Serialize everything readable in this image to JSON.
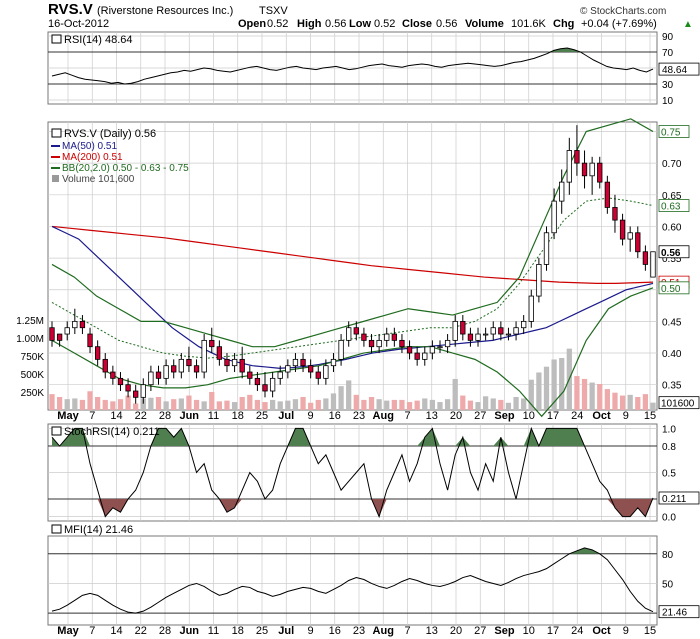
{
  "header": {
    "symbol": "RVS.V",
    "company": "(Riverstone Resources Inc.)",
    "exchange": "TSXV",
    "date": "16-Oct-2012",
    "ohlc": [
      {
        "label": "Open",
        "value": "0.52"
      },
      {
        "label": "High",
        "value": "0.56"
      },
      {
        "label": "Low",
        "value": "0.52"
      },
      {
        "label": "Close",
        "value": "0.56"
      },
      {
        "label": "Volume",
        "value": "101.6K"
      },
      {
        "label": "Chg",
        "value": "+0.04 (+7.69%)"
      }
    ],
    "change_direction_glyph": "▲",
    "watermark": "© StockCharts.com"
  },
  "colors": {
    "up": "#ffffff",
    "down": "#cc0033",
    "ma50": "#1a1a8c",
    "ma200": "#cc0000",
    "bb": "#1f6b1f",
    "overbought_fill": "#4f7f4f",
    "oversold_fill": "#8f5050",
    "vol_up": "#bdbdbd",
    "vol_down": "#eeaaaa",
    "grid": "#cccccc"
  },
  "chart_data": {
    "type": "candlestick",
    "x_tick_labels": [
      "May",
      "7",
      "14",
      "22",
      "28",
      "Jun",
      "11",
      "18",
      "25",
      "Jul",
      "9",
      "16",
      "23",
      "Aug",
      "7",
      "13",
      "20",
      "27",
      "Sep",
      "10",
      "17",
      "24",
      "Oct",
      "9",
      "15"
    ],
    "x_tick_bold": [
      "May",
      "Jun",
      "Jul",
      "Aug",
      "Sep",
      "Oct"
    ],
    "rsi": {
      "label": "RSI(14) 48.64",
      "last": "48.64",
      "right_ticks": [
        "90",
        "70",
        "50",
        "30",
        "10"
      ],
      "right_tick_values": [
        90,
        70,
        50,
        30,
        10
      ],
      "levels": [
        70,
        30
      ],
      "ylim": [
        5,
        95
      ],
      "values": [
        40,
        42,
        44,
        41,
        38,
        36,
        35,
        34,
        33,
        31,
        32,
        30,
        31,
        33,
        36,
        38,
        40,
        42,
        44,
        45,
        47,
        46,
        48,
        50,
        49,
        47,
        46,
        45,
        47,
        49,
        51,
        52,
        50,
        48,
        47,
        49,
        51,
        52,
        50,
        49,
        48,
        50,
        51,
        52,
        50,
        48,
        49,
        51,
        53,
        54,
        55,
        53,
        52,
        51,
        53,
        54,
        55,
        54,
        52,
        51,
        53,
        54,
        55,
        56,
        55,
        54,
        53,
        52,
        53,
        55,
        57,
        58,
        60,
        62,
        65,
        68,
        72,
        74,
        75,
        73,
        70,
        65,
        60,
        56,
        52,
        50,
        49,
        48,
        50,
        47,
        45,
        48.64
      ]
    },
    "price": {
      "legend": [
        {
          "name": "RVS.V (Daily) 0.56",
          "marker": "candle"
        },
        {
          "name": "MA(50) 0.51",
          "marker": "ma50"
        },
        {
          "name": "MA(200) 0.51",
          "marker": "ma200"
        },
        {
          "name": "BB(20,2.0) 0.50 - 0.63 - 0.75",
          "marker": "bb"
        },
        {
          "name": "Volume 101,600",
          "marker": "vol"
        }
      ],
      "right_ticks": [
        "0.75",
        "0.70",
        "0.65",
        "0.60",
        "0.55",
        "0.50",
        "0.45",
        "0.40",
        "0.35"
      ],
      "right_tick_values": [
        0.75,
        0.7,
        0.65,
        0.6,
        0.55,
        0.5,
        0.45,
        0.4,
        0.35
      ],
      "ylim": [
        0.31,
        0.765
      ],
      "tags": [
        {
          "text": "0.75",
          "value": 0.75,
          "color": "#1f6b1f",
          "bold": false
        },
        {
          "text": "0.63",
          "value": 0.633,
          "color": "#1f6b1f",
          "bold": false
        },
        {
          "text": "0.56",
          "value": 0.56,
          "color": "#000000",
          "bold": true
        },
        {
          "text": "0.51",
          "value": 0.512,
          "color": "#cc0000",
          "bold": false
        },
        {
          "text": "0.50",
          "value": 0.503,
          "color": "#1f6b1f",
          "bold": false
        }
      ],
      "candles": [
        [
          0.44,
          0.45,
          0.41,
          0.42
        ],
        [
          0.43,
          0.43,
          0.41,
          0.42
        ],
        [
          0.43,
          0.45,
          0.42,
          0.44
        ],
        [
          0.44,
          0.47,
          0.43,
          0.45
        ],
        [
          0.45,
          0.46,
          0.43,
          0.44
        ],
        [
          0.43,
          0.44,
          0.4,
          0.41
        ],
        [
          0.41,
          0.42,
          0.38,
          0.39
        ],
        [
          0.39,
          0.4,
          0.36,
          0.37
        ],
        [
          0.37,
          0.38,
          0.35,
          0.36
        ],
        [
          0.36,
          0.37,
          0.34,
          0.35
        ],
        [
          0.35,
          0.36,
          0.33,
          0.34
        ],
        [
          0.34,
          0.35,
          0.32,
          0.33
        ],
        [
          0.33,
          0.36,
          0.32,
          0.35
        ],
        [
          0.35,
          0.38,
          0.34,
          0.37
        ],
        [
          0.37,
          0.38,
          0.35,
          0.36
        ],
        [
          0.36,
          0.39,
          0.35,
          0.38
        ],
        [
          0.38,
          0.39,
          0.36,
          0.37
        ],
        [
          0.37,
          0.4,
          0.36,
          0.39
        ],
        [
          0.39,
          0.41,
          0.37,
          0.38
        ],
        [
          0.38,
          0.39,
          0.36,
          0.37
        ],
        [
          0.37,
          0.43,
          0.36,
          0.42
        ],
        [
          0.42,
          0.44,
          0.4,
          0.41
        ],
        [
          0.41,
          0.42,
          0.38,
          0.39
        ],
        [
          0.39,
          0.4,
          0.37,
          0.38
        ],
        [
          0.38,
          0.4,
          0.37,
          0.39
        ],
        [
          0.39,
          0.41,
          0.36,
          0.37
        ],
        [
          0.37,
          0.38,
          0.35,
          0.36
        ],
        [
          0.36,
          0.37,
          0.34,
          0.35
        ],
        [
          0.35,
          0.37,
          0.33,
          0.34
        ],
        [
          0.34,
          0.37,
          0.33,
          0.36
        ],
        [
          0.36,
          0.38,
          0.35,
          0.37
        ],
        [
          0.37,
          0.39,
          0.36,
          0.38
        ],
        [
          0.38,
          0.4,
          0.37,
          0.39
        ],
        [
          0.39,
          0.4,
          0.37,
          0.38
        ],
        [
          0.38,
          0.39,
          0.36,
          0.37
        ],
        [
          0.37,
          0.38,
          0.35,
          0.36
        ],
        [
          0.36,
          0.39,
          0.35,
          0.38
        ],
        [
          0.38,
          0.4,
          0.37,
          0.39
        ],
        [
          0.39,
          0.43,
          0.38,
          0.42
        ],
        [
          0.42,
          0.45,
          0.41,
          0.44
        ],
        [
          0.44,
          0.45,
          0.42,
          0.43
        ],
        [
          0.43,
          0.44,
          0.41,
          0.42
        ],
        [
          0.42,
          0.43,
          0.4,
          0.41
        ],
        [
          0.41,
          0.43,
          0.4,
          0.42
        ],
        [
          0.42,
          0.44,
          0.41,
          0.43
        ],
        [
          0.43,
          0.44,
          0.41,
          0.42
        ],
        [
          0.42,
          0.43,
          0.4,
          0.41
        ],
        [
          0.41,
          0.42,
          0.39,
          0.4
        ],
        [
          0.4,
          0.41,
          0.38,
          0.39
        ],
        [
          0.39,
          0.41,
          0.38,
          0.4
        ],
        [
          0.4,
          0.42,
          0.39,
          0.41
        ],
        [
          0.41,
          0.42,
          0.4,
          0.41
        ],
        [
          0.41,
          0.43,
          0.4,
          0.42
        ],
        [
          0.42,
          0.46,
          0.41,
          0.45
        ],
        [
          0.45,
          0.46,
          0.42,
          0.43
        ],
        [
          0.43,
          0.44,
          0.41,
          0.42
        ],
        [
          0.42,
          0.44,
          0.41,
          0.43
        ],
        [
          0.43,
          0.44,
          0.42,
          0.43
        ],
        [
          0.43,
          0.45,
          0.42,
          0.44
        ],
        [
          0.44,
          0.45,
          0.42,
          0.43
        ],
        [
          0.43,
          0.44,
          0.42,
          0.43
        ],
        [
          0.43,
          0.45,
          0.42,
          0.44
        ],
        [
          0.44,
          0.46,
          0.43,
          0.45
        ],
        [
          0.45,
          0.5,
          0.44,
          0.49
        ],
        [
          0.49,
          0.55,
          0.48,
          0.54
        ],
        [
          0.54,
          0.6,
          0.53,
          0.59
        ],
        [
          0.59,
          0.66,
          0.58,
          0.64
        ],
        [
          0.64,
          0.69,
          0.62,
          0.67
        ],
        [
          0.67,
          0.74,
          0.65,
          0.72
        ],
        [
          0.72,
          0.76,
          0.68,
          0.7
        ],
        [
          0.7,
          0.72,
          0.66,
          0.68
        ],
        [
          0.68,
          0.71,
          0.65,
          0.7
        ],
        [
          0.7,
          0.71,
          0.66,
          0.67
        ],
        [
          0.67,
          0.68,
          0.62,
          0.63
        ],
        [
          0.63,
          0.65,
          0.59,
          0.61
        ],
        [
          0.61,
          0.62,
          0.57,
          0.58
        ],
        [
          0.58,
          0.6,
          0.56,
          0.59
        ],
        [
          0.59,
          0.6,
          0.55,
          0.56
        ],
        [
          0.56,
          0.57,
          0.53,
          0.54
        ],
        [
          0.52,
          0.56,
          0.52,
          0.56
        ]
      ],
      "ma50": [
        0.6,
        0.59,
        0.58,
        0.56,
        0.54,
        0.52,
        0.5,
        0.48,
        0.46,
        0.44,
        0.425,
        0.41,
        0.4,
        0.39,
        0.385,
        0.38,
        0.378,
        0.376,
        0.377,
        0.379,
        0.382,
        0.386,
        0.39,
        0.395,
        0.4,
        0.403,
        0.406,
        0.408,
        0.41,
        0.412,
        0.414,
        0.416,
        0.418,
        0.42,
        0.425,
        0.43,
        0.435,
        0.44,
        0.45,
        0.46,
        0.47,
        0.48,
        0.49,
        0.5,
        0.505,
        0.51
      ],
      "ma200": [
        0.6,
        0.597,
        0.594,
        0.591,
        0.588,
        0.585,
        0.582,
        0.578,
        0.574,
        0.57,
        0.566,
        0.562,
        0.558,
        0.554,
        0.55,
        0.546,
        0.542,
        0.538,
        0.535,
        0.532,
        0.529,
        0.526,
        0.523,
        0.52,
        0.518,
        0.516,
        0.514,
        0.512,
        0.511,
        0.51,
        0.51,
        0.511,
        0.512
      ],
      "bb_upper": [
        0.54,
        0.52,
        0.49,
        0.47,
        0.45,
        0.45,
        0.44,
        0.43,
        0.42,
        0.41,
        0.41,
        0.42,
        0.43,
        0.44,
        0.45,
        0.46,
        0.47,
        0.465,
        0.46,
        0.47,
        0.48,
        0.52,
        0.6,
        0.68,
        0.75,
        0.76,
        0.77,
        0.75
      ],
      "bb_mid": [
        0.48,
        0.46,
        0.44,
        0.42,
        0.41,
        0.4,
        0.395,
        0.392,
        0.395,
        0.4,
        0.405,
        0.41,
        0.415,
        0.42,
        0.425,
        0.43,
        0.435,
        0.44,
        0.44,
        0.45,
        0.47,
        0.51,
        0.56,
        0.61,
        0.64,
        0.645,
        0.64,
        0.633
      ],
      "bb_lower": [
        0.42,
        0.4,
        0.38,
        0.36,
        0.35,
        0.345,
        0.345,
        0.35,
        0.36,
        0.365,
        0.37,
        0.375,
        0.38,
        0.39,
        0.4,
        0.405,
        0.41,
        0.41,
        0.4,
        0.39,
        0.37,
        0.34,
        0.3,
        0.34,
        0.42,
        0.47,
        0.49,
        0.503
      ]
    },
    "volume": {
      "labels": [
        "1.25M",
        "1.00M",
        "750K",
        "500K",
        "250K"
      ],
      "label_values": [
        1250000,
        1000000,
        750000,
        500000,
        250000
      ],
      "last": "101600",
      "ymax": 1600000,
      "values": [
        220000,
        180000,
        150000,
        160000,
        140000,
        260000,
        180000,
        140000,
        120000,
        150000,
        200000,
        90000,
        160000,
        170000,
        180000,
        120000,
        150000,
        160000,
        200000,
        140000,
        120000,
        250000,
        120000,
        130000,
        110000,
        180000,
        210000,
        140000,
        110000,
        140000,
        120000,
        130000,
        150000,
        180000,
        100000,
        140000,
        160000,
        230000,
        330000,
        410000,
        210000,
        140000,
        180000,
        150000,
        130000,
        140000,
        140000,
        110000,
        130000,
        160000,
        140000,
        110000,
        150000,
        430000,
        200000,
        130000,
        110000,
        190000,
        160000,
        140000,
        100000,
        180000,
        160000,
        420000,
        520000,
        600000,
        700000,
        720000,
        850000,
        470000,
        430000,
        380000,
        360000,
        290000,
        240000,
        200000,
        210000,
        180000,
        220000,
        101600
      ]
    },
    "stochrsi": {
      "label": "StochRSI(14) 0.211",
      "last": "0.211",
      "right_ticks": [
        "1.0",
        "0.8",
        "0.5",
        "0.2",
        "0.0"
      ],
      "right_tick_values": [
        1.0,
        0.8,
        0.5,
        0.2,
        0.0
      ],
      "levels": [
        0.8,
        0.2
      ],
      "ylim": [
        -0.05,
        1.05
      ],
      "values": [
        0.9,
        0.8,
        0.9,
        1.0,
        1.0,
        0.6,
        0.3,
        0.0,
        0.1,
        0.05,
        0.2,
        0.3,
        0.5,
        0.8,
        1.0,
        1.0,
        0.9,
        1.0,
        0.8,
        0.5,
        0.6,
        0.3,
        0.2,
        0.05,
        0.1,
        0.3,
        0.5,
        0.4,
        0.2,
        0.3,
        0.6,
        0.8,
        1.0,
        1.0,
        0.8,
        0.6,
        0.7,
        0.5,
        0.3,
        0.4,
        0.5,
        0.6,
        0.2,
        0.0,
        0.3,
        0.5,
        0.7,
        0.4,
        0.6,
        0.9,
        1.0,
        0.6,
        0.3,
        0.7,
        0.9,
        0.5,
        0.3,
        0.6,
        0.4,
        0.9,
        0.5,
        0.2,
        0.6,
        1.0,
        0.8,
        1.0,
        1.0,
        1.0,
        1.0,
        1.0,
        0.8,
        0.6,
        0.4,
        0.3,
        0.1,
        0.0,
        0.0,
        0.1,
        0.0,
        0.211
      ]
    },
    "mfi": {
      "label": "MFI(14) 21.46",
      "last": "21.46",
      "right_ticks": [
        "80",
        "50",
        "20"
      ],
      "right_tick_values": [
        80,
        50,
        20
      ],
      "levels": [
        80,
        20
      ],
      "ylim": [
        8,
        98
      ],
      "values": [
        22,
        24,
        28,
        33,
        38,
        40,
        38,
        33,
        28,
        24,
        21,
        20,
        22,
        26,
        31,
        36,
        40,
        44,
        48,
        50,
        47,
        42,
        38,
        40,
        44,
        47,
        46,
        42,
        40,
        37,
        39,
        42,
        44,
        46,
        45,
        42,
        40,
        44,
        48,
        53,
        56,
        54,
        50,
        47,
        45,
        48,
        52,
        55,
        53,
        50,
        48,
        47,
        49,
        52,
        56,
        58,
        55,
        52,
        50,
        48,
        51,
        55,
        58,
        60,
        62,
        65,
        70,
        75,
        80,
        83,
        86,
        84,
        80,
        74,
        64,
        54,
        42,
        32,
        25,
        21.46
      ]
    }
  }
}
